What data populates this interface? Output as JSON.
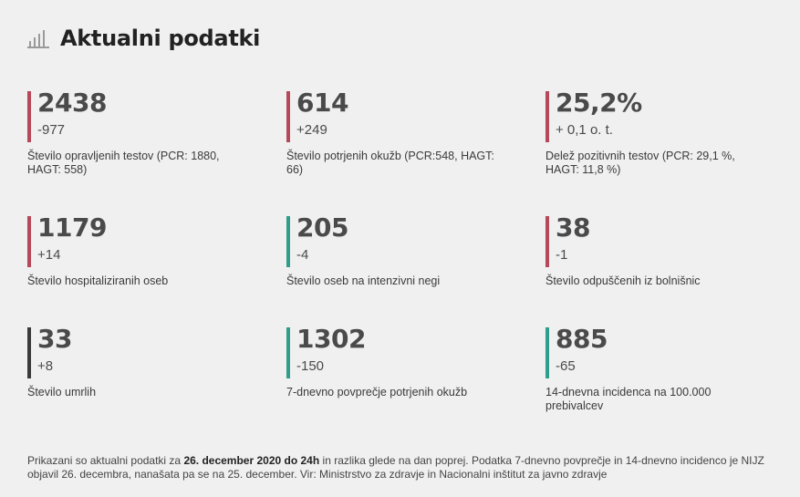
{
  "header": {
    "icon": "bar-chart-icon",
    "title": "Aktualni podatki"
  },
  "colors": {
    "red": "#b5485a",
    "teal": "#2e9e8a",
    "dark": "#3a3a3a",
    "background": "#f1f0f0"
  },
  "stats": [
    {
      "value": "2438",
      "change": "-977",
      "label": "Število opravljenih testov (PCR: 1880, HAGT: 558)",
      "color": "red"
    },
    {
      "value": "614",
      "change": "+249",
      "label": "Število potrjenih okužb (PCR:548, HAGT: 66)",
      "color": "red"
    },
    {
      "value": "25,2%",
      "change": "+ 0,1 o. t.",
      "label": "Delež pozitivnih testov (PCR: 29,1 %, HAGT: 11,8 %)",
      "color": "red"
    },
    {
      "value": "1179",
      "change": "+14",
      "label": "Število hospitaliziranih oseb",
      "color": "red"
    },
    {
      "value": "205",
      "change": "-4",
      "label": "Število oseb na intenzivni negi",
      "color": "teal"
    },
    {
      "value": "38",
      "change": "-1",
      "label": "Število odpuščenih iz bolnišnic",
      "color": "red"
    },
    {
      "value": "33",
      "change": "+8",
      "label": "Število umrlih",
      "color": "dark"
    },
    {
      "value": "1302",
      "change": "-150",
      "label": "7-dnevno povprečje potrjenih okužb",
      "color": "teal"
    },
    {
      "value": "885",
      "change": "-65",
      "label": "14-dnevna incidenca na 100.000 prebivalcev",
      "color": "teal"
    }
  ],
  "footer": {
    "prefix": "Prikazani so aktualni podatki za ",
    "date_bold": "26. december 2020 do 24h",
    "suffix": " in razlika glede na dan poprej. Podatka 7-dnevno povprečje in 14-dnevno incidenco je NIJZ objavil 26. decembra, nanašata pa se na 25. december. Vir: Ministrstvo za zdravje in Nacionalni inštitut za javno zdravje"
  }
}
